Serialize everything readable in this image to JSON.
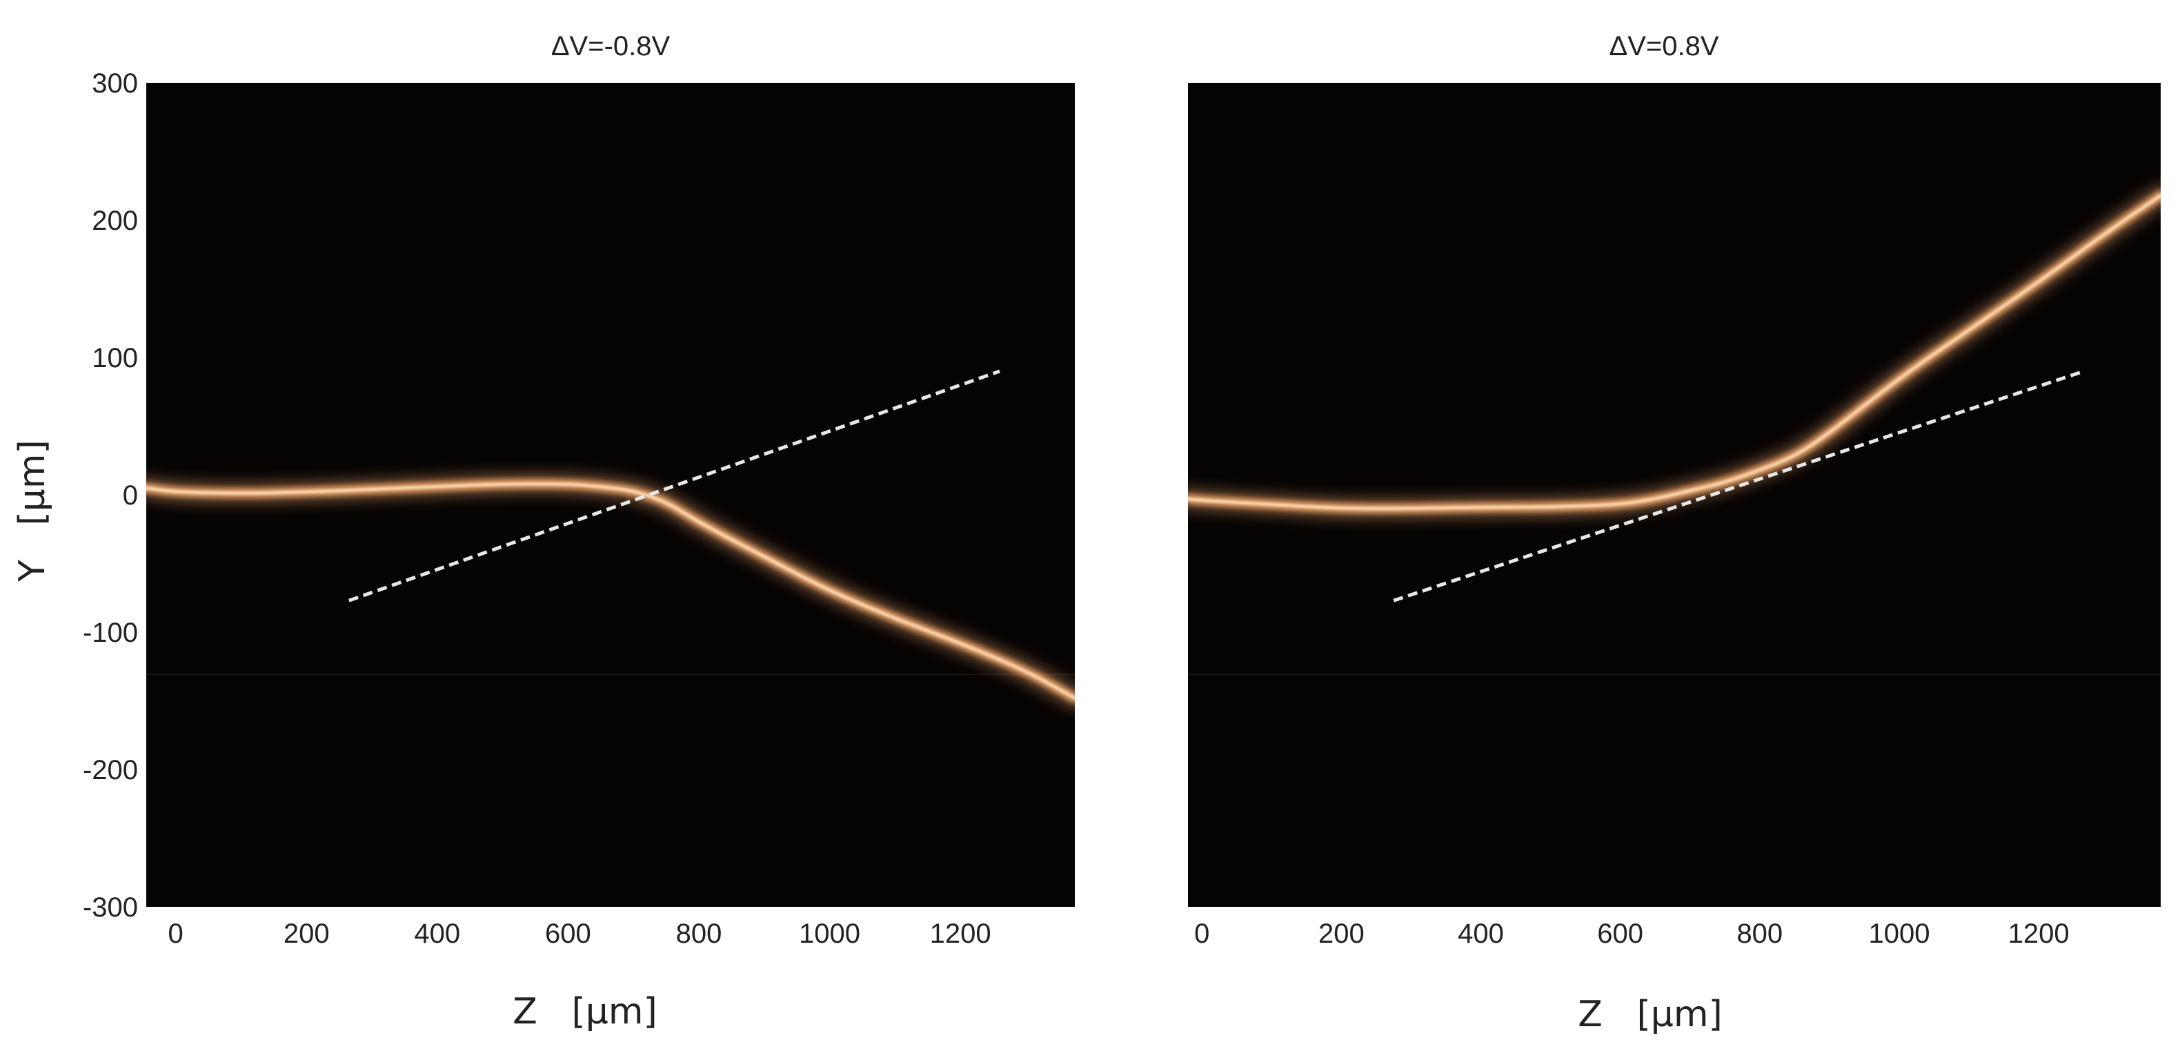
{
  "chart_data": [
    {
      "type": "image",
      "title": "ΔV=-0.8V",
      "xlabel": "Z   [μm]",
      "ylabel": "Y   [μm]",
      "xlim": [
        -45,
        1375
      ],
      "ylim": [
        -300,
        300
      ],
      "xticks": [
        "0",
        "200",
        "400",
        "600",
        "800",
        "1000",
        "1200"
      ],
      "xtick_values": [
        0,
        200,
        400,
        600,
        800,
        1000,
        1200
      ],
      "yticks": [
        "300",
        "200",
        "100",
        "0",
        "-100",
        "-200",
        "-300"
      ],
      "ytick_values": [
        300,
        200,
        100,
        0,
        -100,
        -200,
        -300
      ],
      "colors": {
        "background": "#050303",
        "beam": "#ffb070",
        "core": "#ffe7c8",
        "reference_line": "#e8e8e8"
      },
      "beam_path": {
        "z": [
          -45,
          0,
          100,
          200,
          300,
          400,
          500,
          600,
          650,
          700,
          750,
          800,
          900,
          1000,
          1100,
          1200,
          1300,
          1375
        ],
        "y": [
          5,
          2,
          1,
          2,
          4,
          6,
          8,
          8,
          6,
          3,
          -5,
          -20,
          -45,
          -70,
          -90,
          -108,
          -128,
          -148
        ]
      },
      "reference_line": {
        "z": [
          265,
          1260
        ],
        "y": [
          -77,
          90
        ]
      }
    },
    {
      "type": "image",
      "title": "ΔV=0.8V",
      "xlabel": "Z   [μm]",
      "ylabel": "",
      "xlim": [
        -20,
        1375
      ],
      "ylim": [
        -300,
        300
      ],
      "xticks": [
        "0",
        "200",
        "400",
        "600",
        "800",
        "1000",
        "1200"
      ],
      "xtick_values": [
        0,
        200,
        400,
        600,
        800,
        1000,
        1200
      ],
      "yticks": [],
      "colors": {
        "background": "#050303",
        "beam": "#ffb070",
        "core": "#ffe7c8",
        "reference_line": "#e8e8e8"
      },
      "beam_path": {
        "z": [
          -20,
          0,
          100,
          200,
          300,
          400,
          500,
          600,
          650,
          700,
          750,
          800,
          850,
          900,
          1000,
          1100,
          1200,
          1300,
          1375
        ],
        "y": [
          -3,
          -4,
          -7,
          -10,
          -10,
          -9,
          -9,
          -7,
          -3,
          3,
          9,
          18,
          28,
          45,
          85,
          120,
          155,
          192,
          218
        ]
      },
      "reference_line": {
        "z": [
          275,
          1265
        ],
        "y": [
          -77,
          90
        ]
      }
    }
  ]
}
